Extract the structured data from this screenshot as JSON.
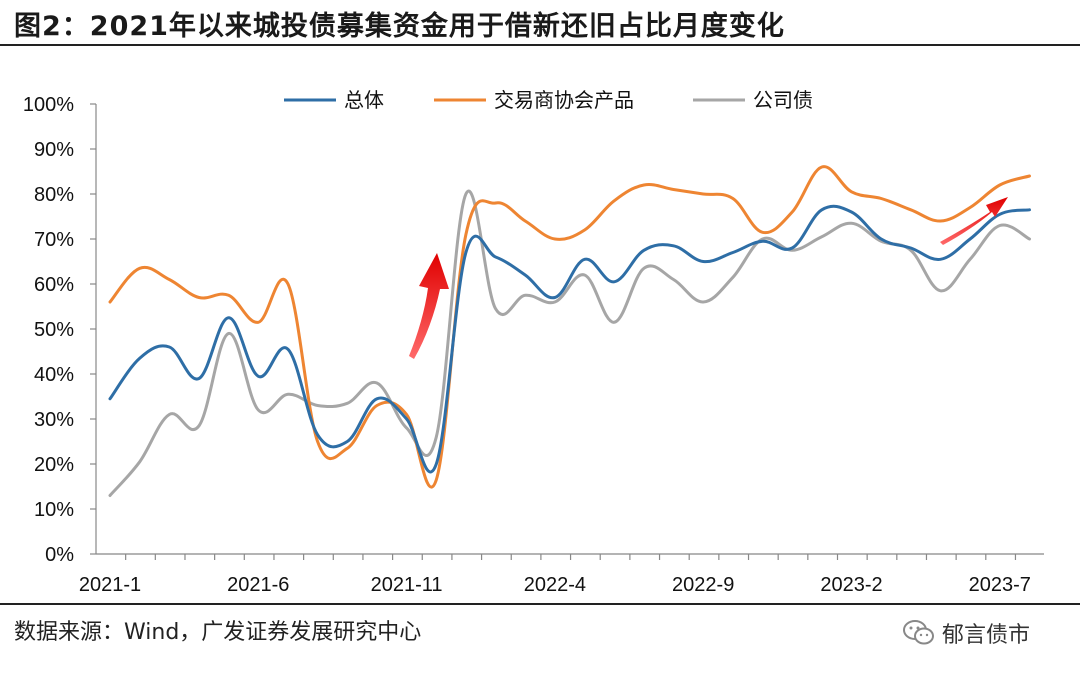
{
  "title": "图2：2021年以来城投债募集资金用于借新还旧占比月度变化",
  "source": "数据来源：Wind，广发证券发展研究中心",
  "watermark": "郁言债市",
  "chart_data": {
    "type": "line",
    "title": "2021年以来城投债募集资金用于借新还旧占比月度变化",
    "xlabel": "",
    "ylabel": "",
    "ylim": [
      0,
      100
    ],
    "y_ticks": [
      "0%",
      "10%",
      "20%",
      "30%",
      "40%",
      "50%",
      "60%",
      "70%",
      "80%",
      "90%",
      "100%"
    ],
    "x_tick_labels": [
      "2021-1",
      "2021-6",
      "2021-11",
      "2022-4",
      "2022-9",
      "2023-2",
      "2023-7"
    ],
    "categories": [
      "2021-1",
      "2021-2",
      "2021-3",
      "2021-4",
      "2021-5",
      "2021-6",
      "2021-7",
      "2021-8",
      "2021-9",
      "2021-10",
      "2021-11",
      "2021-12",
      "2022-1",
      "2022-2",
      "2022-3",
      "2022-4",
      "2022-5",
      "2022-6",
      "2022-7",
      "2022-8",
      "2022-9",
      "2022-10",
      "2022-11",
      "2022-12",
      "2023-1",
      "2023-2",
      "2023-3",
      "2023-4",
      "2023-5",
      "2023-6",
      "2023-7",
      "2023-8"
    ],
    "legend_position": "top",
    "series": [
      {
        "name": "总体",
        "color": "#2e6ea6",
        "values": [
          34.5,
          43.5,
          46,
          39,
          52.5,
          39.5,
          45.5,
          26.5,
          25,
          34.5,
          30,
          20,
          67,
          66,
          62,
          57,
          65.5,
          60.5,
          67.5,
          68.5,
          65,
          67,
          69.5,
          68,
          76.5,
          76,
          70,
          68,
          65.5,
          70,
          75.5,
          76.5
        ]
      },
      {
        "name": "交易商协会产品",
        "color": "#ee8532",
        "values": [
          56,
          63.5,
          61,
          57,
          57.5,
          51.5,
          60,
          25,
          23.5,
          33,
          31,
          16.5,
          71,
          78,
          74,
          70,
          72,
          78.5,
          82,
          81,
          80,
          79,
          71.5,
          76,
          86,
          80.5,
          79,
          76.5,
          74,
          77,
          82,
          84
        ]
      },
      {
        "name": "公司债",
        "color": "#a6a6a6",
        "values": [
          13,
          20.5,
          31,
          28.5,
          49,
          32,
          35.5,
          33,
          33.5,
          38,
          28,
          26,
          80,
          54.5,
          57.5,
          56,
          62,
          51.5,
          63.5,
          61,
          56,
          61.5,
          70,
          67.5,
          70.5,
          73.5,
          69.5,
          67.5,
          58.5,
          65.5,
          73,
          70
        ]
      }
    ],
    "annotations": [
      "red-arrow-2021-12",
      "red-arrow-2023-5"
    ]
  }
}
